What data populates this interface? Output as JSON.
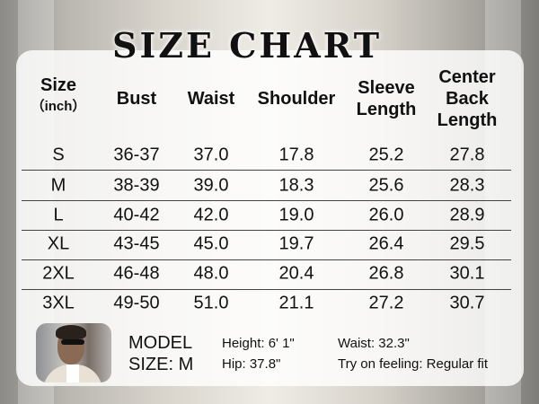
{
  "title": "SIZE CHART",
  "table": {
    "headers": [
      {
        "lines": [
          "Size"
        ],
        "sub": "（inch）"
      },
      {
        "lines": [
          "Bust"
        ]
      },
      {
        "lines": [
          "Waist"
        ]
      },
      {
        "lines": [
          "Shoulder"
        ]
      },
      {
        "lines": [
          "Sleeve",
          "Length"
        ]
      },
      {
        "lines": [
          "Center",
          "Back",
          "Length"
        ]
      }
    ],
    "rows": [
      [
        "S",
        "36-37",
        "37.0",
        "17.8",
        "25.2",
        "27.8"
      ],
      [
        "M",
        "38-39",
        "39.0",
        "18.3",
        "25.6",
        "28.3"
      ],
      [
        "L",
        "40-42",
        "42.0",
        "19.0",
        "26.0",
        "28.9"
      ],
      [
        "XL",
        "43-45",
        "45.0",
        "19.7",
        "26.4",
        "29.5"
      ],
      [
        "2XL",
        "46-48",
        "48.0",
        "20.4",
        "26.8",
        "30.1"
      ],
      [
        "3XL",
        "49-50",
        "51.0",
        "21.1",
        "27.2",
        "30.7"
      ]
    ]
  },
  "model": {
    "label_line1": "MODEL",
    "label_line2": "SIZE: M",
    "height": "Height: 6' 1\"",
    "hip": "Hip: 37.8\"",
    "waist": "Waist: 32.3\"",
    "fit": "Try on feeling: Regular fit"
  }
}
